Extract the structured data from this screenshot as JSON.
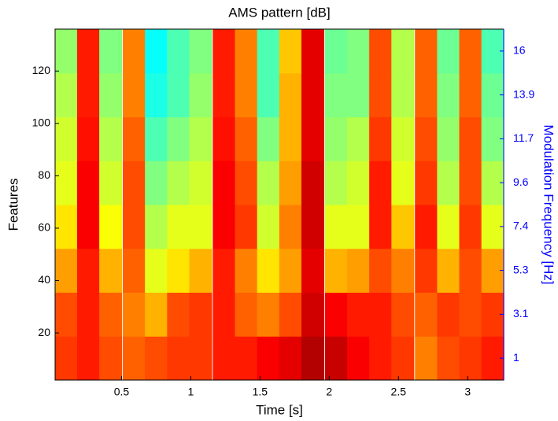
{
  "chart_data": {
    "type": "heatmap",
    "title": "AMS pattern [dB]",
    "x_label": "Time [s]",
    "y_label": "Features",
    "y2_label": "Modulation Frequency [Hz]",
    "colormap": "jet",
    "xlim": [
      0.02,
      3.26
    ],
    "xticks": [
      0.5,
      1,
      1.5,
      2,
      2.5,
      3
    ],
    "ylim": [
      2,
      136
    ],
    "yticks": [
      20,
      40,
      60,
      80,
      100,
      120
    ],
    "y2ticks": [
      "1",
      "3.1",
      "5.3",
      "7.4",
      "9.6",
      "11.7",
      "13.9",
      "16"
    ],
    "x": [
      0.1,
      0.26,
      0.42,
      0.59,
      0.75,
      0.91,
      1.07,
      1.24,
      1.4,
      1.56,
      1.72,
      1.88,
      2.05,
      2.21,
      2.37,
      2.53,
      2.7,
      2.86,
      3.02,
      3.18
    ],
    "z": [
      [
        0.82,
        0.85,
        0.8,
        0.78,
        0.8,
        0.82,
        0.82,
        0.85,
        0.85,
        0.88,
        0.9,
        0.95,
        0.93,
        0.88,
        0.85,
        0.82,
        0.75,
        0.8,
        0.82,
        0.85
      ],
      [
        0.8,
        0.85,
        0.78,
        0.75,
        0.7,
        0.8,
        0.82,
        0.85,
        0.78,
        0.75,
        0.8,
        0.92,
        0.88,
        0.85,
        0.85,
        0.8,
        0.78,
        0.82,
        0.8,
        0.82
      ],
      [
        0.72,
        0.85,
        0.7,
        0.78,
        0.6,
        0.65,
        0.7,
        0.85,
        0.75,
        0.65,
        0.72,
        0.9,
        0.7,
        0.72,
        0.8,
        0.75,
        0.82,
        0.7,
        0.8,
        0.72
      ],
      [
        0.65,
        0.88,
        0.62,
        0.8,
        0.55,
        0.6,
        0.6,
        0.88,
        0.82,
        0.58,
        0.75,
        0.92,
        0.6,
        0.6,
        0.85,
        0.68,
        0.85,
        0.6,
        0.82,
        0.6
      ],
      [
        0.6,
        0.88,
        0.58,
        0.8,
        0.5,
        0.55,
        0.58,
        0.88,
        0.8,
        0.55,
        0.72,
        0.92,
        0.55,
        0.58,
        0.85,
        0.6,
        0.82,
        0.55,
        0.8,
        0.55
      ],
      [
        0.58,
        0.86,
        0.55,
        0.78,
        0.45,
        0.5,
        0.55,
        0.86,
        0.78,
        0.5,
        0.7,
        0.9,
        0.52,
        0.55,
        0.82,
        0.58,
        0.8,
        0.52,
        0.8,
        0.5
      ],
      [
        0.55,
        0.85,
        0.52,
        0.75,
        0.4,
        0.45,
        0.52,
        0.85,
        0.75,
        0.45,
        0.7,
        0.9,
        0.5,
        0.5,
        0.8,
        0.55,
        0.78,
        0.5,
        0.78,
        0.48
      ],
      [
        0.52,
        0.85,
        0.5,
        0.75,
        0.38,
        0.45,
        0.5,
        0.85,
        0.75,
        0.45,
        0.68,
        0.9,
        0.48,
        0.5,
        0.8,
        0.55,
        0.78,
        0.48,
        0.78,
        0.45
      ]
    ]
  }
}
